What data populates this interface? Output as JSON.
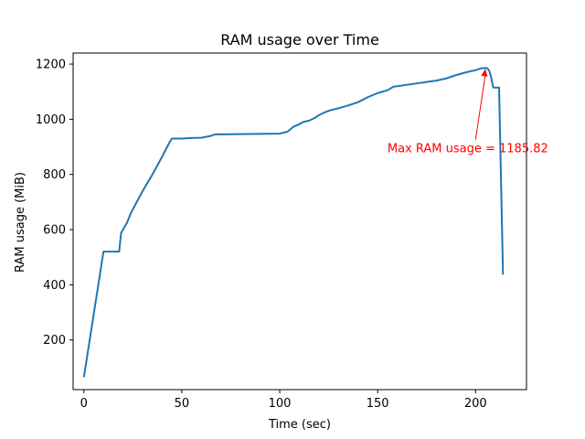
{
  "chart_data": {
    "type": "line",
    "title": "RAM usage over Time",
    "xlabel": "Time (sec)",
    "ylabel": "RAM usage (MiB)",
    "xlim": [
      -5.5,
      226
    ],
    "ylim": [
      20,
      1240
    ],
    "xticks": [
      0,
      50,
      100,
      150,
      200
    ],
    "yticks": [
      200,
      400,
      600,
      800,
      1000,
      1200
    ],
    "grid": false,
    "series": [
      {
        "color": "#1f77b4",
        "x": [
          0,
          10,
          18,
          19,
          20,
          22,
          24,
          27,
          30,
          35,
          40,
          44,
          45,
          50,
          55,
          60,
          65,
          67,
          80,
          90,
          100,
          104,
          107,
          110,
          112,
          115,
          118,
          120,
          123,
          126,
          130,
          135,
          140,
          145,
          150,
          155,
          158,
          160,
          165,
          170,
          175,
          180,
          185,
          190,
          195,
          200,
          203,
          205,
          206,
          207,
          208,
          209,
          210,
          212,
          214
        ],
        "y": [
          65,
          520,
          520,
          588,
          600,
          625,
          660,
          700,
          740,
          800,
          865,
          920,
          930,
          930,
          932,
          933,
          940,
          945,
          946,
          947,
          948,
          955,
          973,
          982,
          990,
          995,
          1005,
          1015,
          1025,
          1033,
          1040,
          1050,
          1062,
          1080,
          1095,
          1105,
          1118,
          1120,
          1125,
          1130,
          1135,
          1140,
          1148,
          1160,
          1170,
          1178,
          1185,
          1185.82,
          1185,
          1175,
          1150,
          1115,
          1115,
          1115,
          437
        ]
      }
    ],
    "annotation": {
      "text": "Max RAM usage = 1185.82",
      "color": "#ff0000",
      "point": [
        205,
        1185.82
      ],
      "text_pos": [
        155,
        880
      ]
    }
  }
}
